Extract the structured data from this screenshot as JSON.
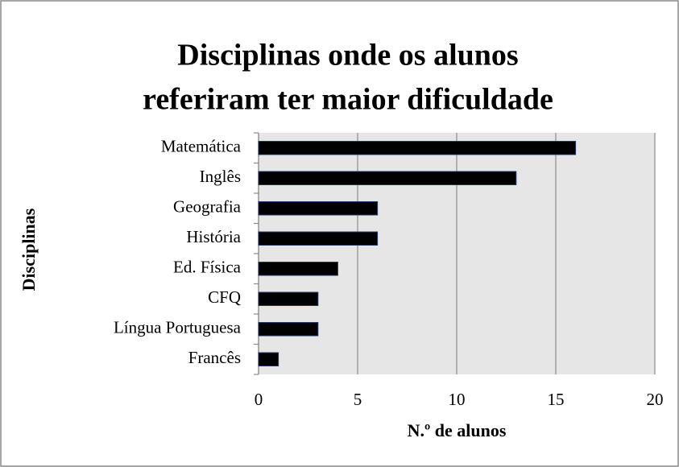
{
  "chart_data": {
    "type": "bar",
    "orientation": "horizontal",
    "title": [
      "Disciplinas onde os alunos",
      "referiram ter maior dificuldade"
    ],
    "x_label": "N.º de alunos",
    "y_label": "Disciplinas",
    "categories": [
      "Matemática",
      "Inglês",
      "Geografia",
      "História",
      "Ed. Física",
      "CFQ",
      "Língua Portuguesa",
      "Francês"
    ],
    "values": [
      16,
      13,
      6,
      6,
      4,
      3,
      3,
      1
    ],
    "color": "#000000",
    "xlim": [
      0,
      20
    ],
    "xticks": [
      0,
      5,
      10,
      15,
      20
    ],
    "grid": true
  }
}
